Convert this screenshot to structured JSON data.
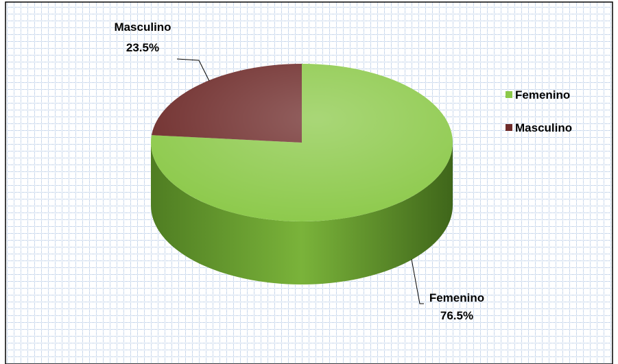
{
  "chart_data": {
    "type": "pie",
    "categories": [
      "Femenino",
      "Masculino"
    ],
    "values": [
      76.5,
      23.5
    ],
    "value_labels": [
      "76.5%",
      "23.5%"
    ],
    "colors": [
      "#8cc94a",
      "#6e2b2a"
    ],
    "legend": "right"
  }
}
